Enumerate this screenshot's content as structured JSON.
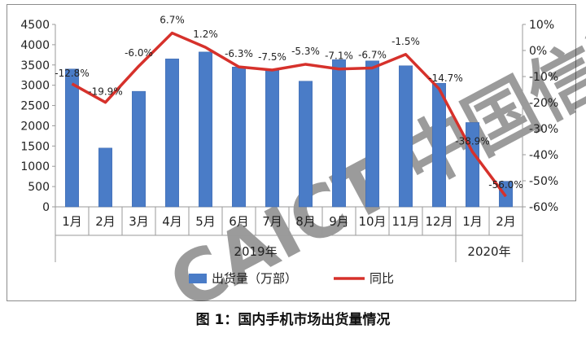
{
  "caption": "图 1：国内手机市场出货量情况",
  "colors": {
    "bar": "#4a7cc7",
    "bar_edge": "#3b66ad",
    "line": "#d6312b",
    "axis": "#9a9a9a",
    "watermark": "#bcd0ec"
  },
  "watermark_text": "CAICT 中国信通",
  "chart_data": {
    "type": "bar",
    "combo": "bar+line",
    "categories": [
      "1月",
      "2月",
      "3月",
      "4月",
      "5月",
      "6月",
      "7月",
      "8月",
      "9月",
      "10月",
      "11月",
      "12月",
      "1月",
      "2月"
    ],
    "groups": [
      {
        "label": "2019年",
        "span": 12
      },
      {
        "label": "2020年",
        "span": 2
      }
    ],
    "series": [
      {
        "name": "出货量（万部）",
        "type": "bar",
        "axis": "left",
        "values": [
          3400,
          1450,
          2850,
          3650,
          3820,
          3450,
          3380,
          3100,
          3630,
          3600,
          3480,
          3050,
          2080,
          630
        ]
      },
      {
        "name": "同比",
        "type": "line",
        "axis": "right",
        "values": [
          -12.8,
          -19.9,
          -6.0,
          6.7,
          1.2,
          -6.3,
          -7.5,
          -5.3,
          -7.1,
          -6.7,
          -1.5,
          -14.7,
          -38.9,
          -56.0
        ],
        "labels": [
          "-12.8%",
          "-19.9%",
          "-6.0%",
          "6.7%",
          "1.2%",
          "-6.3%",
          "-7.5%",
          "-5.3%",
          "-7.1%",
          "-6.7%",
          "-1.5%",
          "-14.7%",
          "-38.9%",
          "-56.0%"
        ]
      }
    ],
    "y_left": {
      "min": 0,
      "max": 4500,
      "ticks": [
        "0",
        "500",
        "1000",
        "1500",
        "2000",
        "2500",
        "3000",
        "3500",
        "4000",
        "4500"
      ]
    },
    "y_right": {
      "min": -60,
      "max": 10,
      "ticks": [
        "10%",
        "0%",
        "-10%",
        "-20%",
        "-30%",
        "-40%",
        "-50%",
        "-60%"
      ]
    },
    "grid": false,
    "legend_position": "bottom"
  }
}
